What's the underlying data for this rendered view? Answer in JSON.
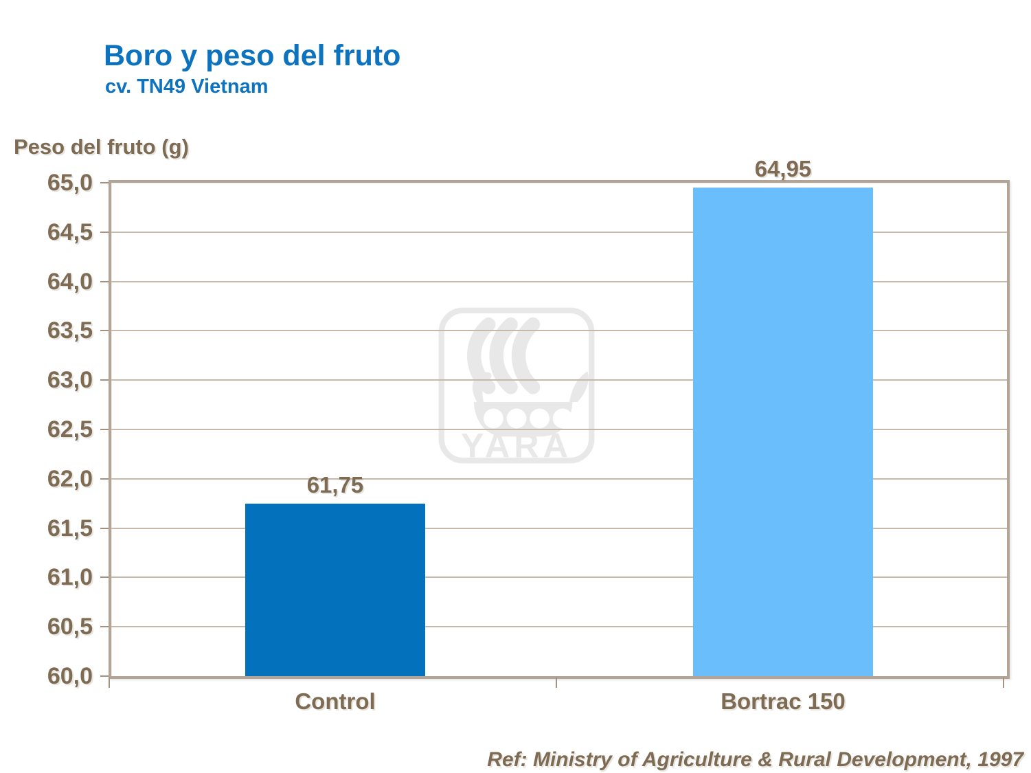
{
  "header": {
    "title": "Boro y peso del fruto",
    "subtitle": "cv. TN49 Vietnam",
    "title_color": "#0d73be"
  },
  "watermark": {
    "brand": "YARA",
    "color": "#e8e8e8"
  },
  "footer": {
    "reference": "Ref: Ministry of Agriculture & Rural Development, 1997"
  },
  "colors": {
    "bar_control": "#0471bd",
    "bar_bortrac_150": "#6bbefc",
    "axis_text": "#7d6b53",
    "grid_line": "#c6b9aa",
    "plot_border": "#b2a496"
  },
  "chart_data": {
    "type": "bar",
    "title": "Boro y peso del fruto",
    "subtitle": "cv. TN49 Vietnam",
    "ylabel": "Peso del fruto (g)",
    "xlabel": "",
    "categories": [
      "Control",
      "Bortrac 150"
    ],
    "values": [
      61.75,
      64.95
    ],
    "value_labels": [
      "61,75",
      "64,95"
    ],
    "bar_colors": [
      "#0471bd",
      "#6bbefc"
    ],
    "ylim": [
      60.0,
      65.0
    ],
    "ytick_step": 0.5,
    "ytick_labels": [
      "60,0",
      "60,5",
      "61,0",
      "61,5",
      "62,0",
      "62,5",
      "63,0",
      "63,5",
      "64,0",
      "64,5",
      "65,0"
    ],
    "grid": true,
    "legend_position": "none",
    "annotation": "Ref: Ministry of Agriculture & Rural Development, 1997"
  }
}
